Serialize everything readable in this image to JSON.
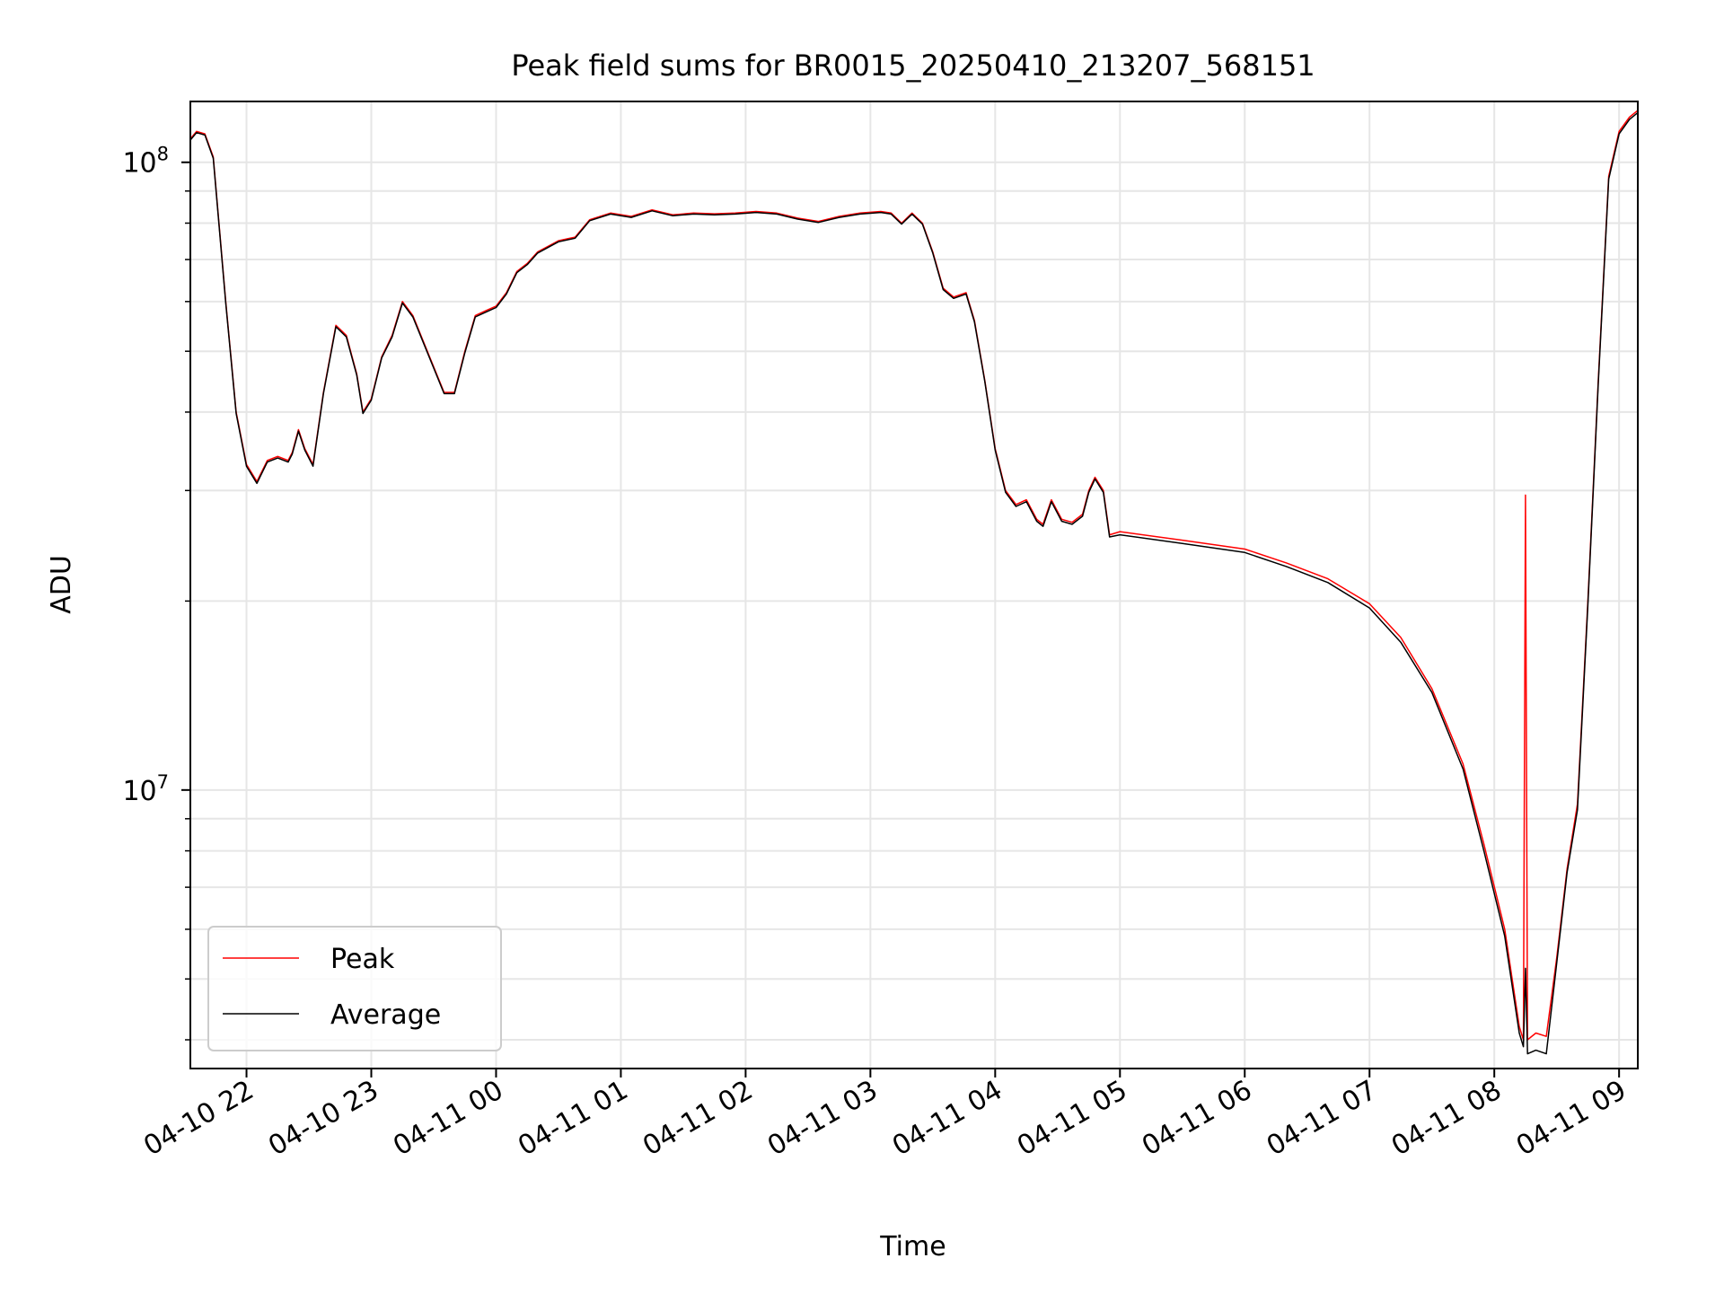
{
  "chart_data": {
    "type": "line",
    "title": "Peak field sums for BR0015_20250410_213207_568151",
    "xlabel": "Time",
    "ylabel": "ADU",
    "yscale": "log",
    "ylim": [
      3600000,
      125000000
    ],
    "xlim": [
      "2025-04-10 21:33",
      "2025-04-11 09:09"
    ],
    "grid": true,
    "legend": "lower-left",
    "x_ticks": [
      {
        "t": "2025-04-10 22:00",
        "label": "04-10 22"
      },
      {
        "t": "2025-04-10 23:00",
        "label": "04-10 23"
      },
      {
        "t": "2025-04-11 00:00",
        "label": "04-11 00"
      },
      {
        "t": "2025-04-11 01:00",
        "label": "04-11 01"
      },
      {
        "t": "2025-04-11 02:00",
        "label": "04-11 02"
      },
      {
        "t": "2025-04-11 03:00",
        "label": "04-11 03"
      },
      {
        "t": "2025-04-11 04:00",
        "label": "04-11 04"
      },
      {
        "t": "2025-04-11 05:00",
        "label": "04-11 05"
      },
      {
        "t": "2025-04-11 06:00",
        "label": "04-11 06"
      },
      {
        "t": "2025-04-11 07:00",
        "label": "04-11 07"
      },
      {
        "t": "2025-04-11 08:00",
        "label": "04-11 08"
      },
      {
        "t": "2025-04-11 09:00",
        "label": "04-11 09"
      }
    ],
    "y_ticks": [
      {
        "value": 10000000,
        "base": "10",
        "exp": "7"
      },
      {
        "value": 100000000,
        "base": "10",
        "exp": "8"
      }
    ],
    "series": [
      {
        "name": "Peak",
        "color": "#ff0000",
        "points": [
          [
            "2025-04-10 21:33",
            109000000
          ],
          [
            "2025-04-10 21:36",
            112000000
          ],
          [
            "2025-04-10 21:40",
            111000000
          ],
          [
            "2025-04-10 21:44",
            102000000
          ],
          [
            "2025-04-10 21:50",
            60000000
          ],
          [
            "2025-04-10 21:55",
            40000000
          ],
          [
            "2025-04-10 22:00",
            33000000
          ],
          [
            "2025-04-10 22:05",
            31000000
          ],
          [
            "2025-04-10 22:10",
            33500000
          ],
          [
            "2025-04-10 22:15",
            34000000
          ],
          [
            "2025-04-10 22:20",
            33500000
          ],
          [
            "2025-04-10 22:22",
            34500000
          ],
          [
            "2025-04-10 22:25",
            37500000
          ],
          [
            "2025-04-10 22:28",
            35000000
          ],
          [
            "2025-04-10 22:32",
            33000000
          ],
          [
            "2025-04-10 22:37",
            43000000
          ],
          [
            "2025-04-10 22:43",
            55000000
          ],
          [
            "2025-04-10 22:48",
            53000000
          ],
          [
            "2025-04-10 22:53",
            46000000
          ],
          [
            "2025-04-10 22:56",
            40000000
          ],
          [
            "2025-04-10 23:00",
            42000000
          ],
          [
            "2025-04-10 23:05",
            49000000
          ],
          [
            "2025-04-10 23:10",
            53000000
          ],
          [
            "2025-04-10 23:15",
            60000000
          ],
          [
            "2025-04-10 23:20",
            57000000
          ],
          [
            "2025-04-10 23:28",
            49000000
          ],
          [
            "2025-04-10 23:35",
            43000000
          ],
          [
            "2025-04-10 23:40",
            43000000
          ],
          [
            "2025-04-10 23:45",
            50000000
          ],
          [
            "2025-04-10 23:50",
            57000000
          ],
          [
            "2025-04-10 23:55",
            58000000
          ],
          [
            "2025-04-11 00:00",
            59000000
          ],
          [
            "2025-04-11 00:05",
            62000000
          ],
          [
            "2025-04-11 00:10",
            67000000
          ],
          [
            "2025-04-11 00:15",
            69000000
          ],
          [
            "2025-04-11 00:20",
            72000000
          ],
          [
            "2025-04-11 00:30",
            75000000
          ],
          [
            "2025-04-11 00:38",
            76000000
          ],
          [
            "2025-04-11 00:45",
            81000000
          ],
          [
            "2025-04-11 00:55",
            83000000
          ],
          [
            "2025-04-11 01:05",
            82000000
          ],
          [
            "2025-04-11 01:15",
            84000000
          ],
          [
            "2025-04-11 01:25",
            82500000
          ],
          [
            "2025-04-11 01:35",
            83000000
          ],
          [
            "2025-04-11 01:45",
            82800000
          ],
          [
            "2025-04-11 01:55",
            83000000
          ],
          [
            "2025-04-11 02:05",
            83500000
          ],
          [
            "2025-04-11 02:15",
            83000000
          ],
          [
            "2025-04-11 02:25",
            81500000
          ],
          [
            "2025-04-11 02:35",
            80500000
          ],
          [
            "2025-04-11 02:45",
            82000000
          ],
          [
            "2025-04-11 02:55",
            83000000
          ],
          [
            "2025-04-11 03:05",
            83500000
          ],
          [
            "2025-04-11 03:10",
            83000000
          ],
          [
            "2025-04-11 03:15",
            80000000
          ],
          [
            "2025-04-11 03:20",
            83000000
          ],
          [
            "2025-04-11 03:25",
            80000000
          ],
          [
            "2025-04-11 03:30",
            72000000
          ],
          [
            "2025-04-11 03:35",
            63000000
          ],
          [
            "2025-04-11 03:40",
            61000000
          ],
          [
            "2025-04-11 03:46",
            62000000
          ],
          [
            "2025-04-11 03:50",
            56000000
          ],
          [
            "2025-04-11 03:55",
            45000000
          ],
          [
            "2025-04-11 04:00",
            35000000
          ],
          [
            "2025-04-11 04:05",
            30000000
          ],
          [
            "2025-04-11 04:10",
            28500000
          ],
          [
            "2025-04-11 04:15",
            29000000
          ],
          [
            "2025-04-11 04:20",
            27000000
          ],
          [
            "2025-04-11 04:23",
            26500000
          ],
          [
            "2025-04-11 04:27",
            29000000
          ],
          [
            "2025-04-11 04:32",
            27000000
          ],
          [
            "2025-04-11 04:37",
            26700000
          ],
          [
            "2025-04-11 04:42",
            27500000
          ],
          [
            "2025-04-11 04:45",
            30000000
          ],
          [
            "2025-04-11 04:48",
            31500000
          ],
          [
            "2025-04-11 04:52",
            30000000
          ],
          [
            "2025-04-11 04:55",
            25500000
          ],
          [
            "2025-04-11 05:00",
            25800000
          ],
          [
            "2025-04-11 05:30",
            25000000
          ],
          [
            "2025-04-11 06:00",
            24200000
          ],
          [
            "2025-04-11 06:20",
            23000000
          ],
          [
            "2025-04-11 06:40",
            21700000
          ],
          [
            "2025-04-11 07:00",
            19800000
          ],
          [
            "2025-04-11 07:15",
            17500000
          ],
          [
            "2025-04-11 07:30",
            14500000
          ],
          [
            "2025-04-11 07:45",
            11000000
          ],
          [
            "2025-04-11 07:55",
            8200000
          ],
          [
            "2025-04-11 08:05",
            6000000
          ],
          [
            "2025-04-11 08:12",
            4200000
          ],
          [
            "2025-04-11 08:14",
            4000000
          ],
          [
            "2025-04-11 08:15",
            29500000
          ],
          [
            "2025-04-11 08:16",
            4000000
          ],
          [
            "2025-04-11 08:20",
            4100000
          ],
          [
            "2025-04-11 08:25",
            4050000
          ],
          [
            "2025-04-11 08:30",
            5400000
          ],
          [
            "2025-04-11 08:35",
            7500000
          ],
          [
            "2025-04-11 08:40",
            9500000
          ],
          [
            "2025-04-11 08:45",
            20000000
          ],
          [
            "2025-04-11 08:50",
            45000000
          ],
          [
            "2025-04-11 08:55",
            95000000
          ],
          [
            "2025-04-11 09:00",
            112000000
          ],
          [
            "2025-04-11 09:05",
            118000000
          ],
          [
            "2025-04-11 09:09",
            121000000
          ]
        ]
      },
      {
        "name": "Average",
        "color": "#000000",
        "points": [
          [
            "2025-04-10 21:33",
            108500000
          ],
          [
            "2025-04-10 21:36",
            111500000
          ],
          [
            "2025-04-10 21:40",
            110500000
          ],
          [
            "2025-04-10 21:44",
            101500000
          ],
          [
            "2025-04-10 21:50",
            59700000
          ],
          [
            "2025-04-10 21:55",
            39800000
          ],
          [
            "2025-04-10 22:00",
            32800000
          ],
          [
            "2025-04-10 22:05",
            30800000
          ],
          [
            "2025-04-10 22:10",
            33300000
          ],
          [
            "2025-04-10 22:15",
            33800000
          ],
          [
            "2025-04-10 22:20",
            33300000
          ],
          [
            "2025-04-10 22:22",
            34300000
          ],
          [
            "2025-04-10 22:25",
            37300000
          ],
          [
            "2025-04-10 22:28",
            34800000
          ],
          [
            "2025-04-10 22:32",
            32800000
          ],
          [
            "2025-04-10 22:37",
            42800000
          ],
          [
            "2025-04-10 22:43",
            54700000
          ],
          [
            "2025-04-10 22:48",
            52700000
          ],
          [
            "2025-04-10 22:53",
            45800000
          ],
          [
            "2025-04-10 22:56",
            39800000
          ],
          [
            "2025-04-10 23:00",
            41800000
          ],
          [
            "2025-04-10 23:05",
            48800000
          ],
          [
            "2025-04-10 23:10",
            52700000
          ],
          [
            "2025-04-10 23:15",
            59700000
          ],
          [
            "2025-04-10 23:20",
            56700000
          ],
          [
            "2025-04-10 23:28",
            48800000
          ],
          [
            "2025-04-10 23:35",
            42800000
          ],
          [
            "2025-04-10 23:40",
            42800000
          ],
          [
            "2025-04-10 23:45",
            49700000
          ],
          [
            "2025-04-10 23:50",
            56700000
          ],
          [
            "2025-04-10 23:55",
            57700000
          ],
          [
            "2025-04-11 00:00",
            58700000
          ],
          [
            "2025-04-11 00:05",
            61700000
          ],
          [
            "2025-04-11 00:10",
            66700000
          ],
          [
            "2025-04-11 00:15",
            68700000
          ],
          [
            "2025-04-11 00:20",
            71700000
          ],
          [
            "2025-04-11 00:30",
            74700000
          ],
          [
            "2025-04-11 00:38",
            75700000
          ],
          [
            "2025-04-11 00:45",
            80700000
          ],
          [
            "2025-04-11 00:55",
            82700000
          ],
          [
            "2025-04-11 01:05",
            81700000
          ],
          [
            "2025-04-11 01:15",
            83700000
          ],
          [
            "2025-04-11 01:25",
            82200000
          ],
          [
            "2025-04-11 01:35",
            82700000
          ],
          [
            "2025-04-11 01:45",
            82500000
          ],
          [
            "2025-04-11 01:55",
            82700000
          ],
          [
            "2025-04-11 02:05",
            83200000
          ],
          [
            "2025-04-11 02:15",
            82700000
          ],
          [
            "2025-04-11 02:25",
            81200000
          ],
          [
            "2025-04-11 02:35",
            80200000
          ],
          [
            "2025-04-11 02:45",
            81700000
          ],
          [
            "2025-04-11 02:55",
            82700000
          ],
          [
            "2025-04-11 03:05",
            83200000
          ],
          [
            "2025-04-11 03:10",
            82700000
          ],
          [
            "2025-04-11 03:15",
            79700000
          ],
          [
            "2025-04-11 03:20",
            82700000
          ],
          [
            "2025-04-11 03:25",
            79700000
          ],
          [
            "2025-04-11 03:30",
            71700000
          ],
          [
            "2025-04-11 03:35",
            62700000
          ],
          [
            "2025-04-11 03:40",
            60700000
          ],
          [
            "2025-04-11 03:46",
            61700000
          ],
          [
            "2025-04-11 03:50",
            55700000
          ],
          [
            "2025-04-11 03:55",
            44800000
          ],
          [
            "2025-04-11 04:00",
            34800000
          ],
          [
            "2025-04-11 04:05",
            29800000
          ],
          [
            "2025-04-11 04:10",
            28300000
          ],
          [
            "2025-04-11 04:15",
            28800000
          ],
          [
            "2025-04-11 04:20",
            26800000
          ],
          [
            "2025-04-11 04:23",
            26300000
          ],
          [
            "2025-04-11 04:27",
            28800000
          ],
          [
            "2025-04-11 04:32",
            26800000
          ],
          [
            "2025-04-11 04:37",
            26500000
          ],
          [
            "2025-04-11 04:42",
            27300000
          ],
          [
            "2025-04-11 04:45",
            29800000
          ],
          [
            "2025-04-11 04:48",
            31300000
          ],
          [
            "2025-04-11 04:52",
            29800000
          ],
          [
            "2025-04-11 04:55",
            25300000
          ],
          [
            "2025-04-11 05:00",
            25500000
          ],
          [
            "2025-04-11 05:30",
            24700000
          ],
          [
            "2025-04-11 06:00",
            23900000
          ],
          [
            "2025-04-11 06:20",
            22700000
          ],
          [
            "2025-04-11 06:40",
            21400000
          ],
          [
            "2025-04-11 07:00",
            19500000
          ],
          [
            "2025-04-11 07:15",
            17200000
          ],
          [
            "2025-04-11 07:30",
            14300000
          ],
          [
            "2025-04-11 07:45",
            10800000
          ],
          [
            "2025-04-11 07:55",
            8000000
          ],
          [
            "2025-04-11 08:05",
            5850000
          ],
          [
            "2025-04-11 08:12",
            4100000
          ],
          [
            "2025-04-11 08:14",
            3900000
          ],
          [
            "2025-04-11 08:15",
            5200000
          ],
          [
            "2025-04-11 08:16",
            3800000
          ],
          [
            "2025-04-11 08:20",
            3850000
          ],
          [
            "2025-04-11 08:25",
            3800000
          ],
          [
            "2025-04-11 08:30",
            5300000
          ],
          [
            "2025-04-11 08:35",
            7400000
          ],
          [
            "2025-04-11 08:40",
            9300000
          ],
          [
            "2025-04-11 08:45",
            19700000
          ],
          [
            "2025-04-11 08:50",
            44500000
          ],
          [
            "2025-04-11 08:55",
            94000000
          ],
          [
            "2025-04-11 09:00",
            111000000
          ],
          [
            "2025-04-11 09:05",
            117000000
          ],
          [
            "2025-04-11 09:09",
            120000000
          ]
        ]
      }
    ]
  }
}
